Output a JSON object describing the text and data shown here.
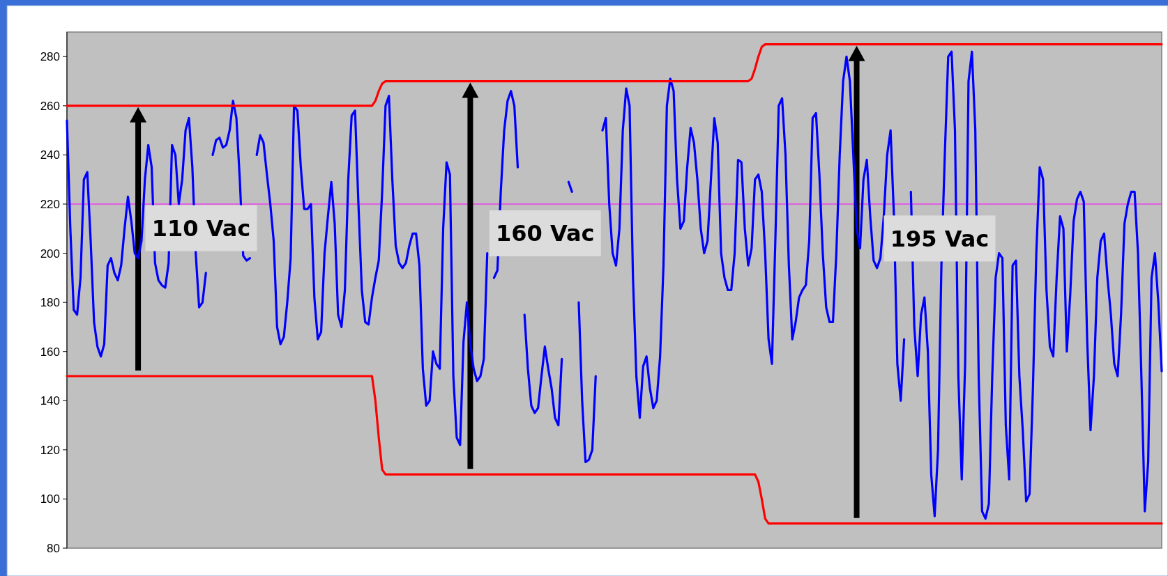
{
  "chart_data": {
    "type": "line",
    "ylim": [
      80,
      290
    ],
    "yticks": [
      80,
      100,
      120,
      140,
      160,
      180,
      200,
      220,
      240,
      260,
      280
    ],
    "tick_labels": "y",
    "grid": false,
    "marker": "none",
    "line_style": "solid",
    "categories": [
      null,
      null,
      null,
      null,
      null,
      null,
      null,
      null,
      null,
      null,
      null,
      null,
      null,
      null,
      null,
      null,
      null,
      null,
      null,
      null,
      null,
      null,
      null,
      null,
      null,
      null,
      null,
      null,
      null,
      null,
      null,
      null,
      null,
      null,
      null,
      null,
      null,
      null,
      null,
      null,
      null,
      null,
      null,
      null,
      null,
      null,
      null,
      null,
      null,
      null,
      null,
      null,
      null,
      null,
      null,
      null,
      null,
      null,
      null,
      null,
      null,
      null,
      null,
      null,
      null,
      null,
      null,
      null,
      null,
      null,
      null,
      null,
      null,
      null,
      null,
      null,
      null,
      null,
      null,
      null,
      null,
      null,
      null,
      null,
      null,
      null,
      null,
      null,
      null,
      null,
      null,
      null,
      null,
      null,
      null,
      null,
      null,
      null,
      null,
      null,
      null,
      null,
      null,
      null,
      null,
      null,
      null,
      null,
      null,
      null,
      null,
      null,
      null,
      null,
      null,
      null,
      null,
      null,
      null,
      null,
      null,
      null,
      null,
      null,
      null,
      null,
      null,
      null,
      null,
      null,
      null,
      null,
      null,
      null,
      null,
      null,
      null,
      null,
      null,
      null,
      null,
      null,
      null,
      null,
      null,
      null,
      null,
      null,
      null,
      null,
      null,
      null,
      null,
      null,
      null,
      null,
      null,
      null,
      null,
      null,
      null,
      null,
      null,
      null,
      null,
      null,
      null,
      null,
      null,
      null,
      null,
      null,
      null,
      null,
      null,
      null,
      null,
      null,
      null,
      null,
      null,
      null,
      null,
      null,
      null,
      null,
      null,
      null,
      null,
      null,
      null,
      null,
      null,
      null,
      null,
      null,
      null,
      null,
      null,
      null,
      null,
      null,
      null,
      null,
      null,
      null,
      null,
      null,
      null,
      null,
      null,
      null,
      null,
      null,
      null,
      null,
      null,
      null,
      null,
      null,
      null,
      null,
      null,
      null,
      null,
      null,
      null,
      null,
      null,
      null,
      null,
      null,
      null,
      null,
      null,
      null,
      null,
      null,
      null,
      null,
      null,
      null,
      null,
      null,
      null,
      null,
      null,
      null,
      null,
      null,
      null,
      null,
      null,
      null,
      null,
      null,
      null,
      null,
      null,
      null,
      null,
      null,
      null,
      null,
      null,
      null,
      null,
      null,
      null,
      null,
      null,
      null,
      null,
      null,
      null,
      null,
      null,
      null,
      null,
      null,
      null,
      null,
      null,
      null,
      null,
      null,
      null,
      null,
      null,
      null,
      null,
      null,
      null,
      null,
      null,
      null,
      null,
      null,
      null,
      null,
      null,
      null,
      null,
      null,
      null,
      null,
      null,
      null,
      null,
      null,
      null,
      null,
      null,
      null,
      null,
      null,
      null,
      null,
      null,
      null,
      null,
      null,
      null,
      null
    ],
    "series": [
      {
        "color": "#0000ff",
        "values": [
          254,
          210,
          177,
          175,
          190,
          230,
          233,
          205,
          172,
          162,
          158,
          163,
          195,
          198,
          192,
          189,
          195,
          210,
          223,
          213,
          200,
          198,
          205,
          230,
          244,
          235,
          196,
          189,
          187,
          186,
          196,
          244,
          240,
          220,
          230,
          250,
          255,
          235,
          200,
          178,
          180,
          192,
          null,
          240,
          246,
          247,
          243,
          244,
          250,
          262,
          255,
          230,
          199,
          197,
          198,
          null,
          240,
          248,
          245,
          232,
          220,
          205,
          170,
          163,
          166,
          180,
          198,
          260,
          258,
          235,
          218,
          218,
          220,
          182,
          165,
          168,
          200,
          215,
          229,
          212,
          175,
          170,
          185,
          230,
          256,
          258,
          220,
          185,
          172,
          171,
          182,
          190,
          197,
          225,
          260,
          264,
          230,
          203,
          196,
          194,
          196,
          203,
          208,
          208,
          195,
          153,
          138,
          140,
          160,
          155,
          153,
          210,
          237,
          232,
          150,
          125,
          122,
          164,
          180,
          163,
          153,
          148,
          150,
          157,
          200,
          null,
          190,
          193,
          225,
          250,
          262,
          266,
          260,
          235,
          null,
          175,
          153,
          138,
          135,
          137,
          150,
          162,
          153,
          145,
          133,
          130,
          157,
          null,
          229,
          225,
          null,
          180,
          140,
          115,
          116,
          120,
          150,
          null,
          250,
          255,
          220,
          200,
          195,
          210,
          250,
          267,
          260,
          190,
          150,
          133,
          154,
          158,
          145,
          137,
          140,
          158,
          195,
          260,
          271,
          266,
          230,
          210,
          213,
          235,
          251,
          245,
          230,
          210,
          200,
          205,
          230,
          255,
          245,
          200,
          190,
          185,
          185,
          200,
          238,
          237,
          210,
          195,
          202,
          230,
          232,
          225,
          200,
          165,
          155,
          205,
          260,
          263,
          240,
          195,
          165,
          172,
          182,
          185,
          187,
          205,
          255,
          257,
          232,
          200,
          178,
          172,
          172,
          200,
          240,
          270,
          280,
          270,
          240,
          210,
          202,
          230,
          238,
          215,
          197,
          194,
          198,
          215,
          240,
          250,
          215,
          155,
          140,
          165,
          null,
          225,
          170,
          150,
          175,
          182,
          160,
          110,
          93,
          120,
          195,
          240,
          280,
          282,
          250,
          150,
          108,
          155,
          270,
          282,
          250,
          150,
          95,
          92,
          98,
          150,
          190,
          200,
          198,
          130,
          108,
          195,
          197,
          150,
          128,
          99,
          102,
          145,
          200,
          235,
          230,
          185,
          162,
          158,
          190,
          215,
          210,
          160,
          183,
          213,
          222,
          225,
          221,
          165,
          128,
          150,
          190,
          205,
          208,
          190,
          175,
          155,
          150,
          175,
          212,
          220,
          225,
          225,
          200,
          150,
          95,
          115,
          190,
          200,
          180,
          152
        ]
      },
      {
        "color": "#ff0000",
        "values": [
          260,
          260,
          260,
          260,
          260,
          260,
          260,
          260,
          260,
          260,
          260,
          260,
          260,
          260,
          260,
          260,
          260,
          260,
          260,
          260,
          260,
          260,
          260,
          260,
          260,
          260,
          260,
          260,
          260,
          260,
          260,
          260,
          260,
          260,
          260,
          260,
          260,
          260,
          260,
          260,
          260,
          260,
          260,
          260,
          260,
          260,
          260,
          260,
          260,
          260,
          260,
          260,
          260,
          260,
          260,
          260,
          260,
          260,
          260,
          260,
          260,
          260,
          260,
          260,
          260,
          260,
          260,
          260,
          260,
          260,
          260,
          260,
          260,
          260,
          260,
          260,
          260,
          260,
          260,
          260,
          260,
          260,
          260,
          260,
          260,
          260,
          260,
          260,
          260,
          260,
          260,
          262,
          266,
          269,
          270,
          270,
          270,
          270,
          270,
          270,
          270,
          270,
          270,
          270,
          270,
          270,
          270,
          270,
          270,
          270,
          270,
          270,
          270,
          270,
          270,
          270,
          270,
          270,
          270,
          270,
          270,
          270,
          270,
          270,
          270,
          270,
          270,
          270,
          270,
          270,
          270,
          270,
          270,
          270,
          270,
          270,
          270,
          270,
          270,
          270,
          270,
          270,
          270,
          270,
          270,
          270,
          270,
          270,
          270,
          270,
          270,
          270,
          270,
          270,
          270,
          270,
          270,
          270,
          270,
          270,
          270,
          270,
          270,
          270,
          270,
          270,
          270,
          270,
          270,
          270,
          270,
          270,
          270,
          270,
          270,
          270,
          270,
          270,
          270,
          270,
          270,
          270,
          270,
          270,
          270,
          270,
          270,
          270,
          270,
          270,
          270,
          270,
          270,
          270,
          270,
          270,
          270,
          270,
          270,
          270,
          270,
          270,
          271,
          275,
          280,
          284,
          285,
          285,
          285,
          285,
          285,
          285,
          285,
          285,
          285,
          285,
          285,
          285,
          285,
          285,
          285,
          285,
          285,
          285,
          285,
          285,
          285,
          285,
          285,
          285,
          285,
          285,
          285,
          285,
          285,
          285,
          285,
          285,
          285,
          285,
          285,
          285,
          285,
          285,
          285,
          285,
          285,
          285,
          285,
          285,
          285,
          285,
          285,
          285,
          285,
          285,
          285,
          285,
          285,
          285,
          285,
          285,
          285,
          285,
          285,
          285,
          285,
          285,
          285,
          285,
          285,
          285,
          285,
          285,
          285,
          285,
          285,
          285,
          285,
          285,
          285,
          285,
          285,
          285,
          285,
          285,
          285,
          285,
          285,
          285,
          285,
          285,
          285,
          285,
          285,
          285,
          285,
          285,
          285,
          285,
          285,
          285,
          285,
          285,
          285,
          285,
          285,
          285,
          285,
          285,
          285,
          285,
          285,
          285,
          285,
          285,
          285,
          285,
          285,
          285,
          285,
          285,
          285,
          285
        ]
      },
      {
        "color": "#ff0000",
        "values": [
          150,
          150,
          150,
          150,
          150,
          150,
          150,
          150,
          150,
          150,
          150,
          150,
          150,
          150,
          150,
          150,
          150,
          150,
          150,
          150,
          150,
          150,
          150,
          150,
          150,
          150,
          150,
          150,
          150,
          150,
          150,
          150,
          150,
          150,
          150,
          150,
          150,
          150,
          150,
          150,
          150,
          150,
          150,
          150,
          150,
          150,
          150,
          150,
          150,
          150,
          150,
          150,
          150,
          150,
          150,
          150,
          150,
          150,
          150,
          150,
          150,
          150,
          150,
          150,
          150,
          150,
          150,
          150,
          150,
          150,
          150,
          150,
          150,
          150,
          150,
          150,
          150,
          150,
          150,
          150,
          150,
          150,
          150,
          150,
          150,
          150,
          150,
          150,
          150,
          150,
          150,
          140,
          125,
          112,
          110,
          110,
          110,
          110,
          110,
          110,
          110,
          110,
          110,
          110,
          110,
          110,
          110,
          110,
          110,
          110,
          110,
          110,
          110,
          110,
          110,
          110,
          110,
          110,
          110,
          110,
          110,
          110,
          110,
          110,
          110,
          110,
          110,
          110,
          110,
          110,
          110,
          110,
          110,
          110,
          110,
          110,
          110,
          110,
          110,
          110,
          110,
          110,
          110,
          110,
          110,
          110,
          110,
          110,
          110,
          110,
          110,
          110,
          110,
          110,
          110,
          110,
          110,
          110,
          110,
          110,
          110,
          110,
          110,
          110,
          110,
          110,
          110,
          110,
          110,
          110,
          110,
          110,
          110,
          110,
          110,
          110,
          110,
          110,
          110,
          110,
          110,
          110,
          110,
          110,
          110,
          110,
          110,
          110,
          110,
          110,
          110,
          110,
          110,
          110,
          110,
          110,
          110,
          110,
          110,
          110,
          110,
          110,
          110,
          110,
          107,
          100,
          92,
          90,
          90,
          90,
          90,
          90,
          90,
          90,
          90,
          90,
          90,
          90,
          90,
          90,
          90,
          90,
          90,
          90,
          90,
          90,
          90,
          90,
          90,
          90,
          90,
          90,
          90,
          90,
          90,
          90,
          90,
          90,
          90,
          90,
          90,
          90,
          90,
          90,
          90,
          90,
          90,
          90,
          90,
          90,
          90,
          90,
          90,
          90,
          90,
          90,
          90,
          90,
          90,
          90,
          90,
          90,
          90,
          90,
          90,
          90,
          90,
          90,
          90,
          90,
          90,
          90,
          90,
          90,
          90,
          90,
          90,
          90,
          90,
          90,
          90,
          90,
          90,
          90,
          90,
          90,
          90,
          90,
          90,
          90,
          90,
          90,
          90,
          90,
          90,
          90,
          90,
          90,
          90,
          90,
          90,
          90,
          90,
          90,
          90,
          90,
          90,
          90,
          90,
          90,
          90,
          90,
          90,
          90,
          90,
          90,
          90,
          90,
          90,
          90,
          90,
          90,
          90,
          90
        ]
      }
    ],
    "ref_lines": [
      {
        "axis": "y",
        "value": 220,
        "color": "#ff00ff"
      }
    ],
    "annotations": [
      "110 Vac",
      "160 Vac",
      "195 Vac"
    ]
  }
}
